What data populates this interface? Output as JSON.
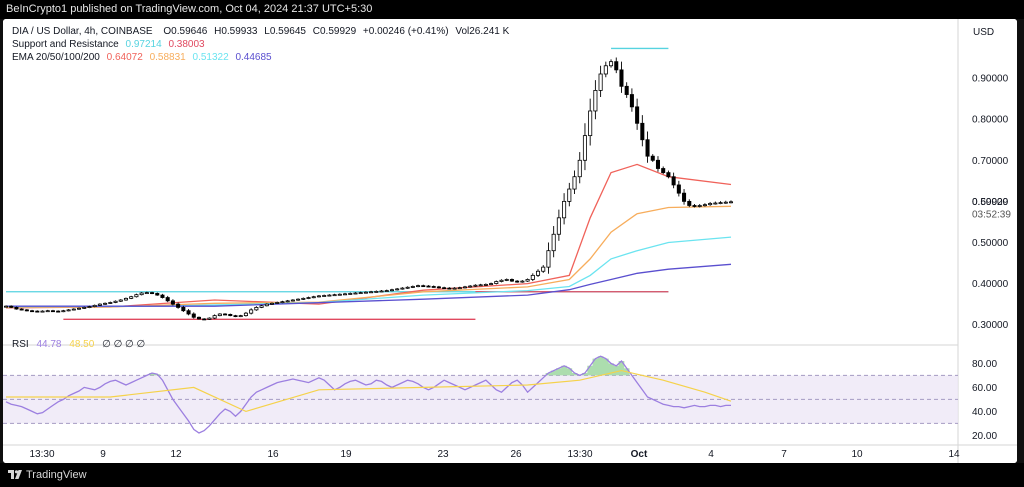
{
  "header": {
    "publish_text": "BeInCrypto1 published on TradingView.com, Oct 04, 2024 21:37 UTC+5:30"
  },
  "legend": {
    "symbol": "DIA / US Dollar, 4h, COINBASE",
    "ohlc": {
      "open": "O0.59646",
      "high": "H0.59933",
      "low": "L0.59645",
      "close": "C0.59929",
      "change": "+0.00246 (+0.41%)",
      "volume": "Vol26.241 K"
    },
    "sr": {
      "label": "Support and Resistance",
      "values": [
        "0.97214",
        "0.38003"
      ]
    },
    "ema": {
      "label": "EMA 20/50/100/200",
      "values": [
        "0.64072",
        "0.58831",
        "0.51322",
        "0.44685"
      ]
    },
    "rsi": {
      "label": "RSI",
      "values": [
        "44.78",
        "48.50"
      ],
      "extra": "∅ ∅ ∅ ∅"
    }
  },
  "price_axis": {
    "currency": "USD",
    "ticks": [
      "0.90000",
      "0.80000",
      "0.70000",
      "0.60000",
      "0.50000",
      "0.40000",
      "0.30000"
    ],
    "last_price": "0.59929",
    "countdown": "03:52:39"
  },
  "rsi_axis": {
    "ticks": [
      "80.00",
      "60.00",
      "40.00",
      "20.00"
    ]
  },
  "time_axis": {
    "ticks": [
      "13:30",
      "9",
      "12",
      "16",
      "19",
      "23",
      "26",
      "13:30",
      "Oct",
      "4",
      "7",
      "10",
      "14"
    ]
  },
  "footer": {
    "brand": "TradingView"
  },
  "colors": {
    "bg": "#ffffff",
    "up": "#ffffff",
    "down": "#000000",
    "ema20": "#f0625a",
    "ema50": "#f7ad5c",
    "ema100": "#6be4f0",
    "ema200": "#5a4fcf",
    "support": "#e0495f",
    "resistance": "#56d3e0",
    "rsi": "#9c7fe0",
    "rsi_ma": "#f5d24b",
    "rsi_band": "#ede7f6"
  },
  "chart_data": {
    "type": "candlestick",
    "title": "DIA / US Dollar, 4h, COINBASE",
    "ylabel": "USD",
    "ylim": [
      0.27,
      1.0
    ],
    "x_ticks": [
      "13:30",
      "9",
      "12",
      "16",
      "19",
      "23",
      "26",
      "13:30",
      "Oct",
      "4",
      "7",
      "10",
      "14"
    ],
    "close_series": [
      0.345,
      0.342,
      0.338,
      0.336,
      0.334,
      0.333,
      0.332,
      0.333,
      0.334,
      0.333,
      0.332,
      0.334,
      0.336,
      0.338,
      0.34,
      0.342,
      0.344,
      0.347,
      0.35,
      0.352,
      0.354,
      0.357,
      0.36,
      0.364,
      0.368,
      0.373,
      0.377,
      0.378,
      0.376,
      0.372,
      0.366,
      0.358,
      0.35,
      0.342,
      0.334,
      0.326,
      0.318,
      0.314,
      0.313,
      0.316,
      0.322,
      0.326,
      0.325,
      0.322,
      0.32,
      0.322,
      0.328,
      0.336,
      0.342,
      0.346,
      0.35,
      0.352,
      0.354,
      0.356,
      0.358,
      0.36,
      0.362,
      0.364,
      0.366,
      0.368,
      0.37,
      0.371,
      0.372,
      0.373,
      0.374,
      0.375,
      0.376,
      0.377,
      0.378,
      0.379,
      0.38,
      0.381,
      0.382,
      0.383,
      0.385,
      0.387,
      0.389,
      0.391,
      0.393,
      0.395,
      0.394,
      0.393,
      0.392,
      0.39,
      0.389,
      0.388,
      0.389,
      0.39,
      0.392,
      0.394,
      0.396,
      0.397,
      0.398,
      0.4,
      0.405,
      0.408,
      0.41,
      0.406,
      0.404,
      0.406,
      0.41,
      0.42,
      0.43,
      0.44,
      0.48,
      0.52,
      0.56,
      0.6,
      0.63,
      0.66,
      0.7,
      0.76,
      0.82,
      0.87,
      0.91,
      0.93,
      0.94,
      0.92,
      0.88,
      0.86,
      0.83,
      0.79,
      0.75,
      0.71,
      0.7,
      0.68,
      0.67,
      0.66,
      0.64,
      0.62,
      0.6,
      0.59,
      0.588,
      0.59,
      0.592,
      0.595,
      0.596,
      0.597,
      0.598,
      0.599
    ],
    "ema": {
      "EMA 20": [
        [
          0,
          0.341
        ],
        [
          20,
          0.343
        ],
        [
          40,
          0.36
        ],
        [
          60,
          0.35
        ],
        [
          80,
          0.384
        ],
        [
          100,
          0.4
        ],
        [
          108,
          0.42
        ],
        [
          112,
          0.56
        ],
        [
          116,
          0.67
        ],
        [
          121,
          0.69
        ],
        [
          127,
          0.66
        ],
        [
          139,
          0.641
        ]
      ],
      "EMA 50": [
        [
          0,
          0.342
        ],
        [
          20,
          0.343
        ],
        [
          40,
          0.352
        ],
        [
          60,
          0.355
        ],
        [
          80,
          0.38
        ],
        [
          100,
          0.392
        ],
        [
          108,
          0.41
        ],
        [
          112,
          0.46
        ],
        [
          116,
          0.525
        ],
        [
          121,
          0.57
        ],
        [
          127,
          0.585
        ],
        [
          139,
          0.588
        ]
      ],
      "EMA 100": [
        [
          0,
          0.344
        ],
        [
          30,
          0.345
        ],
        [
          60,
          0.354
        ],
        [
          80,
          0.372
        ],
        [
          100,
          0.383
        ],
        [
          108,
          0.393
        ],
        [
          112,
          0.42
        ],
        [
          116,
          0.46
        ],
        [
          121,
          0.48
        ],
        [
          127,
          0.5
        ],
        [
          139,
          0.513
        ]
      ],
      "EMA 200": [
        [
          0,
          0.345
        ],
        [
          40,
          0.345
        ],
        [
          80,
          0.362
        ],
        [
          100,
          0.372
        ],
        [
          108,
          0.385
        ],
        [
          112,
          0.398
        ],
        [
          116,
          0.41
        ],
        [
          121,
          0.425
        ],
        [
          127,
          0.435
        ],
        [
          139,
          0.447
        ]
      ]
    },
    "levels": {
      "Resistance": [
        {
          "value": 0.97214,
          "x0": 116,
          "x1": 127
        },
        {
          "value": 0.38003,
          "x0": 0,
          "x1": 127
        }
      ],
      "Support": [
        {
          "value": 0.38003,
          "x0": 90,
          "x1": 127
        },
        {
          "value": 0.313,
          "x0": 11,
          "x1": 90
        }
      ]
    },
    "rsi": {
      "ylim": [
        12,
        92
      ],
      "bands": [
        70,
        50,
        30
      ],
      "values": [
        48,
        46,
        45,
        44,
        42,
        40,
        38,
        39,
        42,
        45,
        48,
        50,
        53,
        55,
        57,
        60,
        59,
        58,
        60,
        63,
        65,
        66,
        64,
        62,
        64,
        66,
        68,
        70,
        72,
        71,
        66,
        58,
        50,
        44,
        38,
        32,
        25,
        22,
        24,
        28,
        33,
        38,
        42,
        40,
        36,
        40,
        46,
        52,
        56,
        58,
        60,
        62,
        64,
        65,
        66,
        67,
        66,
        65,
        64,
        66,
        68,
        66,
        62,
        58,
        60,
        63,
        65,
        66,
        64,
        62,
        63,
        66,
        65,
        62,
        60,
        62,
        64,
        66,
        65,
        63,
        60,
        58,
        60,
        63,
        66,
        64,
        62,
        60,
        58,
        60,
        62,
        64,
        66,
        62,
        58,
        56,
        60,
        64,
        66,
        62,
        56,
        60,
        64,
        68,
        72,
        74,
        76,
        78,
        76,
        72,
        70,
        72,
        78,
        84,
        86,
        84,
        80,
        78,
        82,
        76,
        70,
        64,
        58,
        52,
        50,
        48,
        46,
        45,
        44,
        44,
        43,
        44,
        45,
        44,
        44,
        45,
        45,
        44,
        45,
        45
      ],
      "ma": [
        [
          0,
          52
        ],
        [
          20,
          52
        ],
        [
          36,
          60
        ],
        [
          46,
          40
        ],
        [
          60,
          58
        ],
        [
          80,
          60
        ],
        [
          100,
          62
        ],
        [
          110,
          66
        ],
        [
          118,
          74
        ],
        [
          126,
          66
        ],
        [
          134,
          56
        ],
        [
          139,
          48.5
        ]
      ]
    }
  }
}
